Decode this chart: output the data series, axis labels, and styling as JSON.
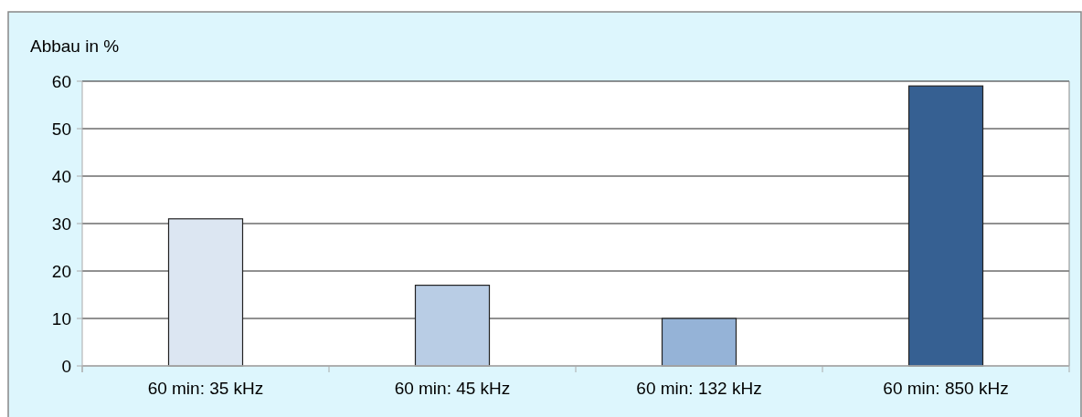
{
  "chart_data": {
    "type": "bar",
    "ylabel": "Abbau in %",
    "categories": [
      "60 min: 35 kHz",
      "60 min: 45 kHz",
      "60 min: 132 kHz",
      "60 min: 850 kHz"
    ],
    "values": [
      31,
      17,
      10,
      59
    ],
    "colors": [
      "#dce6f2",
      "#b9cde5",
      "#95b3d7",
      "#366092"
    ],
    "ylim": [
      0,
      60
    ],
    "yticks": [
      0,
      10,
      20,
      30,
      40,
      50,
      60
    ],
    "grid": "y"
  }
}
